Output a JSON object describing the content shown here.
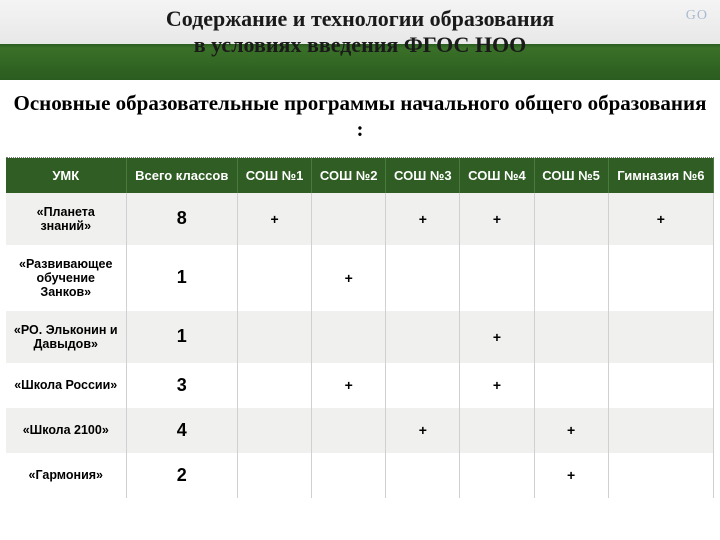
{
  "header": {
    "title_line1": "Содержание и технологии образования",
    "title_line2": "в условиях введения ФГОС НОО",
    "logo_hint": "GO"
  },
  "subtitle": "Основные образовательные программы начального общего образования :",
  "table": {
    "columns": [
      "УМК",
      "Всего классов",
      "СОШ №1",
      "СОШ №2",
      "СОШ №3",
      "СОШ №4",
      "СОШ №5",
      "Гимназия №6"
    ],
    "rows": [
      {
        "name": "«Планета знаний»",
        "count": "8",
        "c1": "+",
        "c2": "",
        "c3": "+",
        "c4": "+",
        "c5": "",
        "c6": "+"
      },
      {
        "name": "«Развивающее обучение Занков»",
        "count": "1",
        "c1": "",
        "c2": "+",
        "c3": "",
        "c4": "",
        "c5": "",
        "c6": ""
      },
      {
        "name": "«РО. Эльконин и Давыдов»",
        "count": "1",
        "c1": "",
        "c2": "",
        "c3": "",
        "c4": "+",
        "c5": "",
        "c6": ""
      },
      {
        "name": "«Школа России»",
        "count": "3",
        "c1": "",
        "c2": "+",
        "c3": "",
        "c4": "+",
        "c5": "",
        "c6": ""
      },
      {
        "name": "«Школа 2100»",
        "count": "4",
        "c1": "",
        "c2": "",
        "c3": "+",
        "c4": "",
        "c5": "+",
        "c6": ""
      },
      {
        "name": "«Гармония»",
        "count": "2",
        "c1": "",
        "c2": "",
        "c3": "",
        "c4": "",
        "c5": "+",
        "c6": ""
      }
    ]
  }
}
